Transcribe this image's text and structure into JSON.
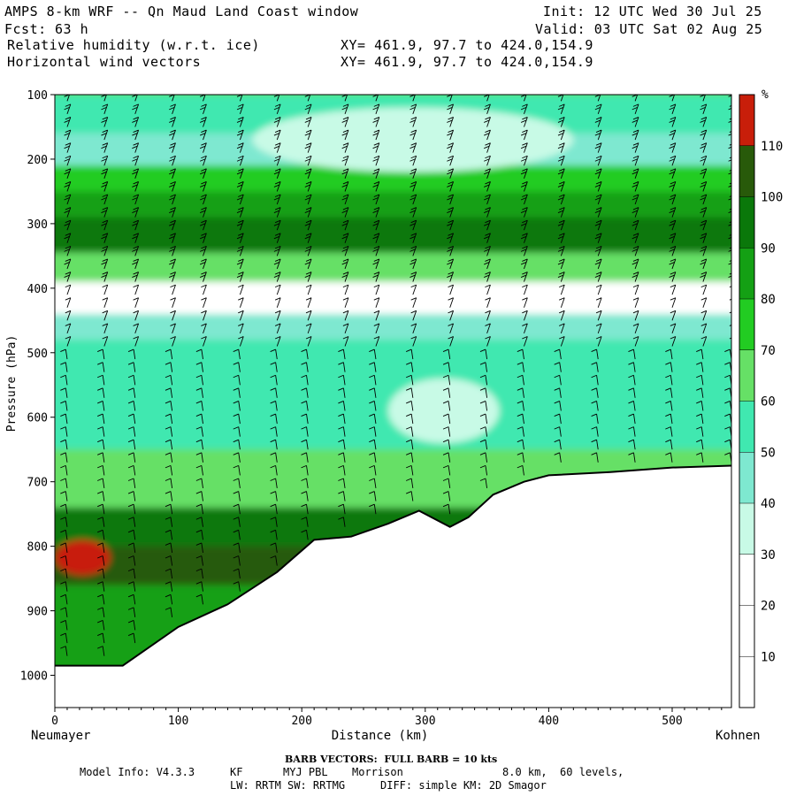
{
  "header": {
    "title": "AMPS 8-km WRF -- Qn Maud Land Coast window",
    "init": "Init: 12 UTC Wed 30 Jul 25",
    "fcst_label": "Fcst:",
    "fcst_value": "63 h",
    "valid": "Valid: 03 UTC Sat 02 Aug 25",
    "field1": "Relative humidity (w.r.t. ice)",
    "field2": "Horizontal wind vectors",
    "xy1": "XY= 461.9, 97.7 to 424.0,154.9",
    "xy2": "XY= 461.9, 97.7 to 424.0,154.9"
  },
  "chart_data": {
    "type": "heatmap",
    "title": "Relative humidity (w.r.t. ice)",
    "xlabel": "Distance (km)",
    "ylabel": "Pressure (hPa)",
    "xlim": [
      0,
      548
    ],
    "ylim": [
      1050,
      100
    ],
    "x_ticks": [
      0,
      100,
      200,
      300,
      400,
      500
    ],
    "y_ticks": [
      100,
      200,
      300,
      400,
      500,
      600,
      700,
      800,
      900,
      1000
    ],
    "x_start_label": "Neumayer",
    "x_end_label": "Kohnen",
    "colorbar": {
      "unit": "%",
      "levels": [
        10,
        20,
        30,
        40,
        50,
        60,
        70,
        80,
        90,
        100,
        110
      ],
      "colors": [
        "#ffffff",
        "#ffffff",
        "#ffffff",
        "#c8fae6",
        "#7ee8d0",
        "#40e8b0",
        "#66e066",
        "#22cc22",
        "#14a014",
        "#0a780a",
        "#285a0a",
        "#c81e0a"
      ]
    },
    "terrain": [
      [
        0,
        985
      ],
      [
        55,
        985
      ],
      [
        100,
        925
      ],
      [
        140,
        890
      ],
      [
        180,
        840
      ],
      [
        210,
        790
      ],
      [
        240,
        785
      ],
      [
        270,
        765
      ],
      [
        295,
        745
      ],
      [
        320,
        770
      ],
      [
        335,
        755
      ],
      [
        355,
        720
      ],
      [
        380,
        700
      ],
      [
        400,
        690
      ],
      [
        450,
        685
      ],
      [
        500,
        678
      ],
      [
        548,
        675
      ]
    ],
    "humidity_bands": [
      {
        "p_top": 100,
        "p_bottom": 160,
        "rh": 55
      },
      {
        "p_top": 160,
        "p_bottom": 210,
        "rh": 45
      },
      {
        "p_top": 210,
        "p_bottom": 250,
        "rh": 70
      },
      {
        "p_top": 250,
        "p_bottom": 290,
        "rh": 85
      },
      {
        "p_top": 290,
        "p_bottom": 345,
        "rh": 90
      },
      {
        "p_top": 345,
        "p_bottom": 390,
        "rh": 65
      },
      {
        "p_top": 390,
        "p_bottom": 440,
        "rh": 20
      },
      {
        "p_top": 440,
        "p_bottom": 480,
        "rh": 40
      },
      {
        "p_top": 480,
        "p_bottom": 560,
        "rh": 55
      },
      {
        "p_top": 560,
        "p_bottom": 650,
        "rh": 50
      },
      {
        "p_top": 650,
        "p_bottom": 740,
        "rh": 65
      },
      {
        "p_top": 740,
        "p_bottom": 800,
        "rh": 90
      },
      {
        "p_top": 800,
        "p_bottom": 860,
        "rh": 100
      },
      {
        "p_top": 860,
        "p_bottom": 1000,
        "rh": 80
      }
    ],
    "features": [
      {
        "name": "moist pocket",
        "x": [
          0,
          45
        ],
        "p": [
          790,
          845
        ],
        "rh": 112
      },
      {
        "name": "dry pocket",
        "x": [
          270,
          360
        ],
        "p": [
          540,
          640
        ],
        "rh": 35
      },
      {
        "name": "dry upper band",
        "x": [
          160,
          420
        ],
        "p": [
          120,
          220
        ],
        "rh": 35
      }
    ],
    "barb_columns_km": [
      10,
      40,
      65,
      95,
      120,
      150,
      180,
      205,
      235,
      260,
      290,
      320,
      350,
      380,
      410,
      440,
      470,
      500,
      525,
      548
    ],
    "barb_levels_hpa": [
      110,
      130,
      150,
      170,
      190,
      210,
      230,
      250,
      270,
      290,
      310,
      330,
      350,
      370,
      390,
      410,
      430,
      450,
      470,
      490,
      510,
      530,
      550,
      570,
      590,
      610,
      630,
      650,
      670,
      690,
      710,
      730,
      750,
      770,
      790,
      810,
      830,
      850,
      870,
      890,
      910,
      930,
      950,
      970
    ]
  },
  "footer": {
    "barb_note": "BARB VECTORS:  FULL BARB = 10 kts",
    "model_info_label": "Model Info: V4.3.3",
    "scheme1": "KF",
    "pbl": "MYJ PBL",
    "micro": "Morrison",
    "resolution": "8.0 km,  60 levels,",
    "radiation": "LW: RRTM SW: RRTMG",
    "diffusion": "DIFF: simple KM: 2D Smagor"
  }
}
